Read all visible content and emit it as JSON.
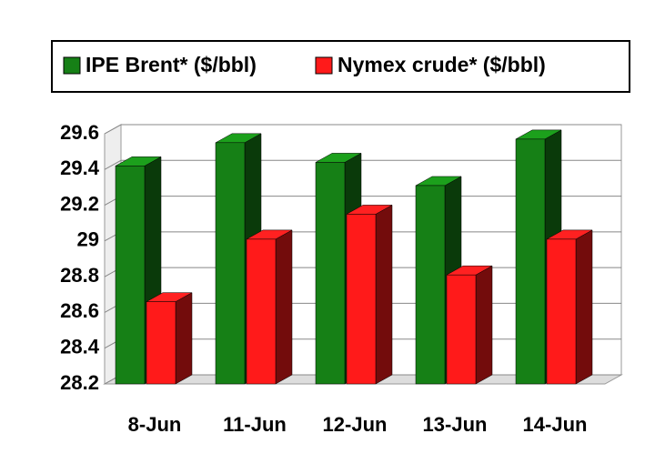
{
  "chart_data": {
    "type": "bar3d",
    "categories": [
      "8-Jun",
      "11-Jun",
      "12-Jun",
      "13-Jun",
      "14-Jun"
    ],
    "series": [
      {
        "name": "IPE Brent* ($/bbl)",
        "color": "#168016",
        "values": [
          29.42,
          29.55,
          29.44,
          29.31,
          29.57
        ]
      },
      {
        "name": "Nymex crude* ($/bbl)",
        "color": "#ff1a1a",
        "values": [
          28.66,
          29.01,
          29.15,
          28.81,
          29.01
        ]
      }
    ],
    "ylim": [
      28.2,
      29.6
    ],
    "yticks": [
      28.2,
      28.4,
      28.6,
      28.8,
      29,
      29.2,
      29.4,
      29.6
    ],
    "grid": true
  }
}
